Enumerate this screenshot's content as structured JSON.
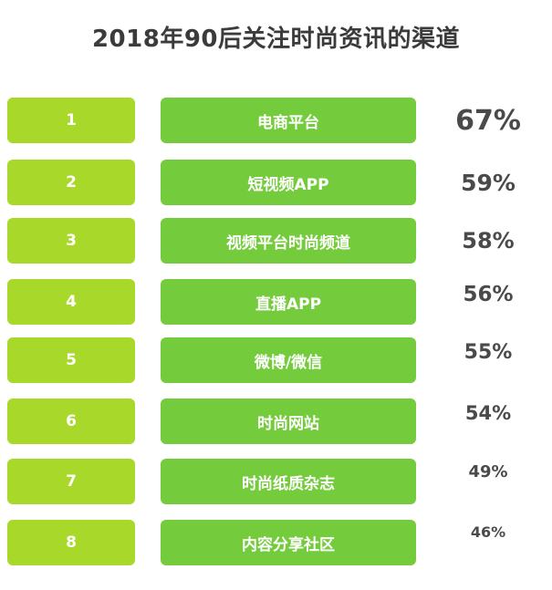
{
  "chart_data": {
    "type": "table",
    "title": "2018年90后关注时尚资讯的渠道",
    "rows": [
      {
        "rank": "1",
        "channel": "电商平台",
        "percent": "67%",
        "value": 67
      },
      {
        "rank": "2",
        "channel": "短视频APP",
        "percent": "59%",
        "value": 59
      },
      {
        "rank": "3",
        "channel": "视频平台时尚频道",
        "percent": "58%",
        "value": 58
      },
      {
        "rank": "4",
        "channel": "直播APP",
        "percent": "56%",
        "value": 56
      },
      {
        "rank": "5",
        "channel": "微博/微信",
        "percent": "55%",
        "value": 55
      },
      {
        "rank": "6",
        "channel": "时尚网站",
        "percent": "54%",
        "value": 54
      },
      {
        "rank": "7",
        "channel": "时尚纸质杂志",
        "percent": "49%",
        "value": 49
      },
      {
        "rank": "8",
        "channel": "内容分享社区",
        "percent": "46%",
        "value": 46
      }
    ]
  },
  "colors": {
    "rank_box": "#a8d92a",
    "label_box": "#74cc3c",
    "text_dark": "#4a4a4a",
    "title": "#3b3b3b"
  }
}
